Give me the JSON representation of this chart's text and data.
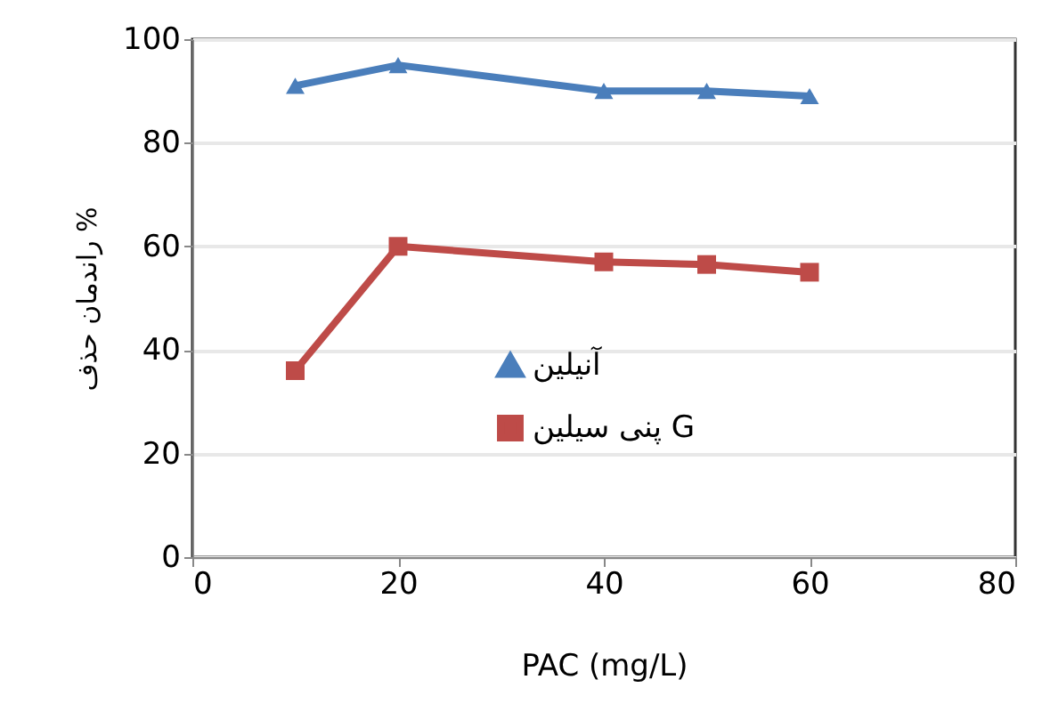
{
  "chart_data": {
    "type": "line",
    "xlabel": "PAC (mg/L)",
    "ylabel": "راندمان حذف %",
    "x": [
      10,
      20,
      40,
      50,
      60
    ],
    "series": [
      {
        "name": "آنیلین",
        "color": "#4a7ebb",
        "marker": "triangle",
        "values": [
          91,
          95,
          90,
          90,
          89
        ]
      },
      {
        "name": "پنی سیلین G",
        "color": "#be4b48",
        "marker": "square",
        "values": [
          36,
          60,
          57,
          56.5,
          55
        ]
      }
    ],
    "xlim": [
      0,
      80
    ],
    "xticks": [
      0,
      20,
      40,
      60,
      80
    ],
    "ylim": [
      0,
      100
    ],
    "yticks": [
      0,
      20,
      40,
      60,
      80,
      100
    ],
    "grid": "y",
    "legend": "bottom right",
    "line_style": "solid"
  }
}
